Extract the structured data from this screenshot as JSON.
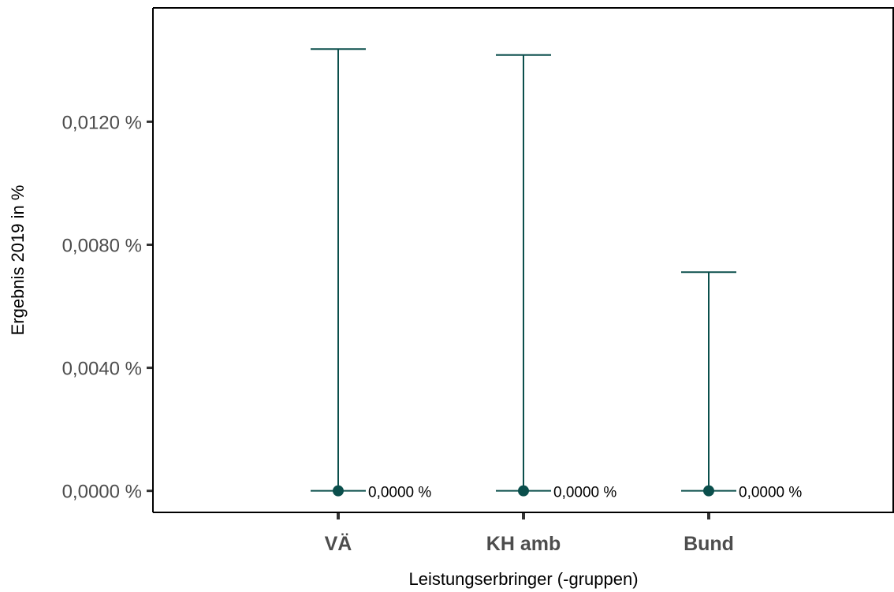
{
  "chart_data": {
    "type": "errorbar",
    "categories": [
      "VÄ",
      "KH amb",
      "Bund"
    ],
    "values": [
      0.0,
      0.0,
      0.0
    ],
    "upper": [
      0.01436,
      0.01417,
      0.00711
    ],
    "lower": [
      0.0,
      0.0,
      0.0
    ],
    "data_labels": [
      "0,0000 %",
      "0,0000 %",
      "0,0000 %"
    ],
    "yticks": [
      0.0,
      0.004,
      0.008,
      0.012
    ],
    "ytick_labels": [
      "0,0000 %",
      "0,0040 %",
      "0,0080 %",
      "0,0120 %"
    ],
    "ylim": [
      -0.0007,
      0.0157
    ],
    "xlabel": "Leistungserbringer (-gruppen)",
    "ylabel": "Ergebnis 2019 in %",
    "grid": false,
    "colors": {
      "series": "#0b4f4c",
      "axis": "#000000",
      "tick": "#333333",
      "label": "#4d4d4d"
    }
  }
}
